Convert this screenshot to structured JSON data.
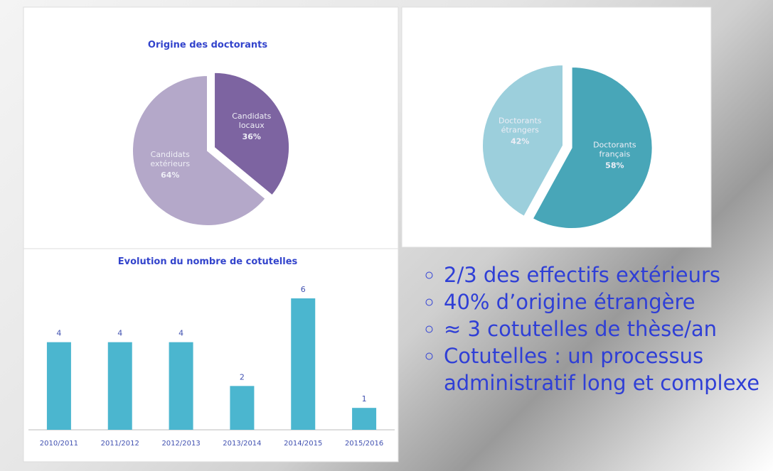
{
  "chart_data": [
    {
      "type": "pie",
      "title": "Origine des doctorants",
      "categories": [
        "Candidats locaux",
        "Candidats extérieurs"
      ],
      "values": [
        36,
        64
      ],
      "value_labels": [
        "36%",
        "64%"
      ],
      "colors": [
        "#7d64a1",
        "#b4a8c9"
      ]
    },
    {
      "type": "pie",
      "categories": [
        "Doctorants français",
        "Doctorants étrangers"
      ],
      "values": [
        58,
        42
      ],
      "value_labels": [
        "58%",
        "42%"
      ],
      "colors": [
        "#48a6b8",
        "#9ccfdc"
      ]
    },
    {
      "type": "bar",
      "title": "Evolution du nombre de cotutelles",
      "categories": [
        "2010/2011",
        "2011/2012",
        "2012/2013",
        "2013/2014",
        "2014/2015",
        "2015/2016"
      ],
      "values": [
        4,
        4,
        4,
        2,
        6,
        1
      ],
      "color": "#4bb6cf"
    }
  ],
  "bullets": [
    "2/3  des effectifs extérieurs",
    "40% d’origine étrangère",
    "≈ 3 cotutelles de thèse/an",
    "Cotutelles :  un processus administratif long et complexe"
  ]
}
